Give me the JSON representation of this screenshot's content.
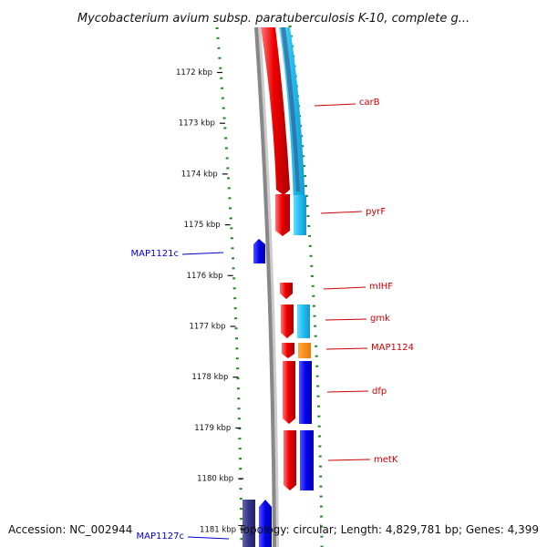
{
  "title": "Mycobacterium avium subsp. paratuberculosis K-10, complete g...",
  "footer": {
    "accession": "Accession: NC_002944",
    "summary": "Topology: circular; Length: 4,829,781 bp; Genes: 4,399"
  },
  "colors": {
    "forward_gene": "#ee0000",
    "forward_label": "#cc0000",
    "reverse_gene": "#0000ee",
    "reverse_label": "#0000cc",
    "cds_light": "#22bbee",
    "cds_dark": "#0000dd",
    "orange_cds": "#ff8800",
    "gc_dots": "#228822",
    "backbone": "#888888"
  },
  "ticks": [
    {
      "pos": 1172,
      "label": "1172 kbp"
    },
    {
      "pos": 1173,
      "label": "1173 kbp"
    },
    {
      "pos": 1174,
      "label": "1174 kbp"
    },
    {
      "pos": 1175,
      "label": "1175 kbp"
    },
    {
      "pos": 1176,
      "label": "1176 kbp"
    },
    {
      "pos": 1177,
      "label": "1177 kbp"
    },
    {
      "pos": 1178,
      "label": "1178 kbp"
    },
    {
      "pos": 1179,
      "label": "1179 kbp"
    },
    {
      "pos": 1180,
      "label": "1180 kbp"
    },
    {
      "pos": 1181,
      "label": "1181 kbp"
    }
  ],
  "labels": [
    {
      "id": "carB",
      "text": "carB",
      "strand": "forward"
    },
    {
      "id": "pyrF",
      "text": "pyrF",
      "strand": "forward"
    },
    {
      "id": "MAP1121c",
      "text": "MAP1121c",
      "strand": "reverse"
    },
    {
      "id": "mihF",
      "text": "mIHF",
      "strand": "forward"
    },
    {
      "id": "gmk",
      "text": "gmk",
      "strand": "forward"
    },
    {
      "id": "MAP1124",
      "text": "MAP1124",
      "strand": "forward"
    },
    {
      "id": "dfp",
      "text": "dfp",
      "strand": "forward"
    },
    {
      "id": "MAP1127c",
      "text": "MAP1127c",
      "strand": "reverse"
    },
    {
      "id": "metK",
      "text": "metK",
      "strand": "forward"
    }
  ]
}
